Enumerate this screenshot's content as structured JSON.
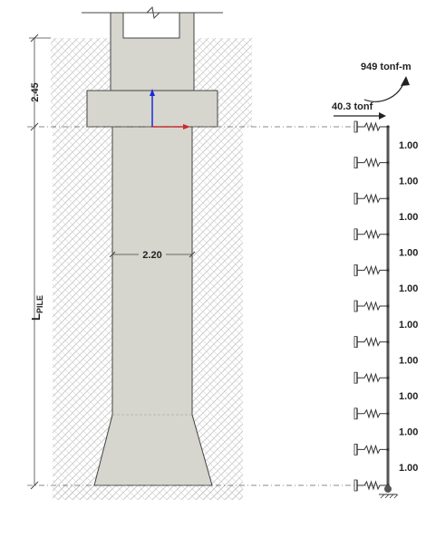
{
  "dimensions": {
    "cap_depth": "2.45",
    "pile_diameter": "2.20",
    "pile_length_main": "L",
    "pile_length_sub": "PILE"
  },
  "loads": {
    "moment": "949 tonf-m",
    "shear": "40.3 tonf"
  },
  "springs": {
    "count": 11,
    "spacing_labels": [
      "1.00",
      "1.00",
      "1.00",
      "1.00",
      "1.00",
      "1.00",
      "1.00",
      "1.00",
      "1.00",
      "1.00"
    ]
  },
  "colors": {
    "concrete": "#d6d6ce",
    "concrete_edge": "#444444",
    "soil_hatch": "#bdbdbd",
    "axis_y": "#1a2bd8",
    "axis_x": "#e02020",
    "spring_line": "#333333"
  }
}
